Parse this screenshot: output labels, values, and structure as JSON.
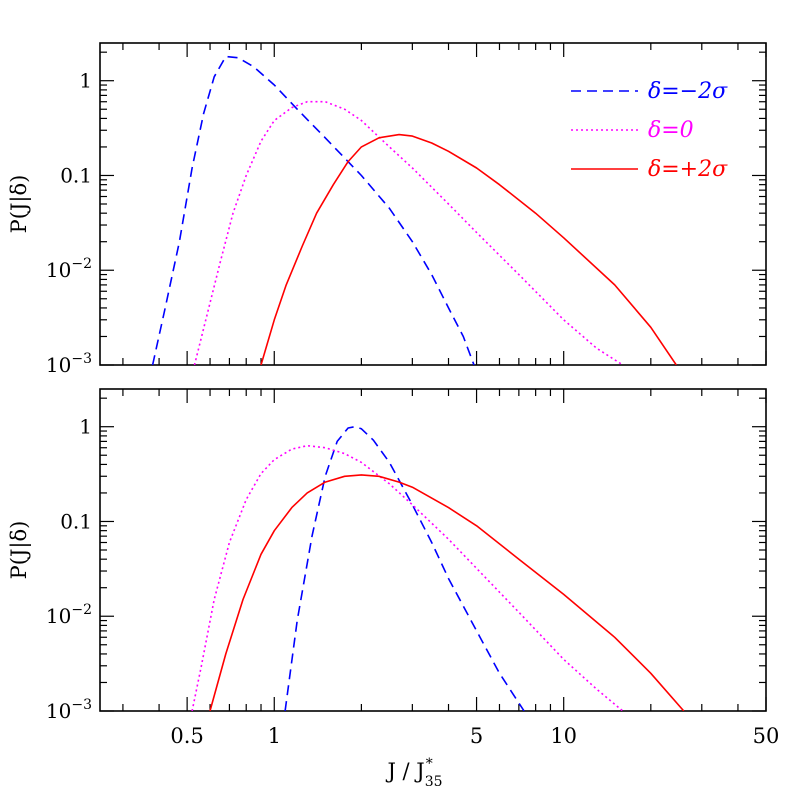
{
  "chart_data": [
    {
      "type": "line",
      "panel": "top",
      "x_scale": "log",
      "y_scale": "log",
      "xlim": [
        0.25,
        50
      ],
      "ylim": [
        0.001,
        2.5
      ],
      "ylabel": "P(J|δ)",
      "y_ticks": [
        {
          "value": 1,
          "label": "1"
        },
        {
          "value": 0.1,
          "label": "0.1"
        },
        {
          "value": 0.01,
          "label": "10",
          "sup": "−2"
        },
        {
          "value": 0.001,
          "label": "10",
          "sup": "−3"
        }
      ],
      "legend": {
        "position": "top-right"
      },
      "series": [
        {
          "name": "δ=−2σ",
          "color": "#0000ff",
          "style": "dashed",
          "x": [
            0.38,
            0.42,
            0.47,
            0.52,
            0.57,
            0.62,
            0.68,
            0.75,
            0.85,
            1.0,
            1.2,
            1.5,
            2.0,
            2.5,
            3.0,
            3.5,
            4.0,
            4.5,
            4.9
          ],
          "y": [
            0.001,
            0.004,
            0.02,
            0.12,
            0.45,
            1.1,
            1.8,
            1.75,
            1.4,
            0.9,
            0.5,
            0.25,
            0.1,
            0.045,
            0.02,
            0.009,
            0.004,
            0.002,
            0.001
          ]
        },
        {
          "name": "δ=0",
          "color": "#ff00ff",
          "style": "dotted",
          "x": [
            0.53,
            0.58,
            0.65,
            0.72,
            0.8,
            0.9,
            1.0,
            1.15,
            1.3,
            1.5,
            1.75,
            2.0,
            2.5,
            3.0,
            4.0,
            5.0,
            7.0,
            10.0,
            13.0,
            16.0
          ],
          "y": [
            0.001,
            0.003,
            0.012,
            0.04,
            0.1,
            0.23,
            0.38,
            0.52,
            0.6,
            0.6,
            0.5,
            0.38,
            0.2,
            0.12,
            0.05,
            0.025,
            0.009,
            0.003,
            0.0015,
            0.001
          ]
        },
        {
          "name": "δ=+2σ",
          "color": "#ff0000",
          "style": "solid",
          "x": [
            0.9,
            1.0,
            1.1,
            1.25,
            1.4,
            1.6,
            1.8,
            2.0,
            2.3,
            2.7,
            3.0,
            3.5,
            4.0,
            5.0,
            6.0,
            8.0,
            10.0,
            15.0,
            20.0,
            24.5
          ],
          "y": [
            0.001,
            0.003,
            0.007,
            0.018,
            0.04,
            0.08,
            0.14,
            0.2,
            0.25,
            0.27,
            0.26,
            0.22,
            0.18,
            0.12,
            0.08,
            0.04,
            0.022,
            0.007,
            0.0025,
            0.001
          ]
        }
      ]
    },
    {
      "type": "line",
      "panel": "bottom",
      "x_scale": "log",
      "y_scale": "log",
      "xlim": [
        0.25,
        50
      ],
      "ylim": [
        0.001,
        2.5
      ],
      "xlabel": "J  /  J",
      "xlabel_sup": "*",
      "xlabel_sub": "35",
      "ylabel": "P(J|δ)",
      "x_ticks": [
        {
          "value": 0.5,
          "label": "0.5"
        },
        {
          "value": 1,
          "label": "1"
        },
        {
          "value": 5,
          "label": "5"
        },
        {
          "value": 10,
          "label": "10"
        },
        {
          "value": 50,
          "label": "50"
        }
      ],
      "y_ticks": [
        {
          "value": 1,
          "label": "1"
        },
        {
          "value": 0.1,
          "label": "0.1"
        },
        {
          "value": 0.01,
          "label": "10",
          "sup": "−2"
        },
        {
          "value": 0.001,
          "label": "10",
          "sup": "−3"
        }
      ],
      "series": [
        {
          "name": "δ=−2σ",
          "color": "#0000ff",
          "style": "dashed",
          "x": [
            1.09,
            1.2,
            1.35,
            1.5,
            1.65,
            1.8,
            1.9,
            2.0,
            2.2,
            2.5,
            3.0,
            3.5,
            4.0,
            5.0,
            6.0,
            7.3
          ],
          "y": [
            0.001,
            0.009,
            0.07,
            0.3,
            0.7,
            0.97,
            1.0,
            0.95,
            0.72,
            0.42,
            0.15,
            0.06,
            0.025,
            0.007,
            0.0025,
            0.001
          ]
        },
        {
          "name": "δ=0",
          "color": "#ff00ff",
          "style": "dotted",
          "x": [
            0.52,
            0.56,
            0.62,
            0.7,
            0.8,
            0.9,
            1.0,
            1.15,
            1.3,
            1.5,
            1.75,
            2.0,
            2.5,
            3.0,
            4.0,
            5.0,
            7.0,
            10.0,
            13.0,
            16.0
          ],
          "y": [
            0.001,
            0.003,
            0.015,
            0.06,
            0.17,
            0.32,
            0.45,
            0.58,
            0.63,
            0.6,
            0.52,
            0.42,
            0.25,
            0.15,
            0.065,
            0.032,
            0.011,
            0.0035,
            0.0017,
            0.001
          ]
        },
        {
          "name": "δ=+2σ",
          "color": "#ff0000",
          "style": "solid",
          "x": [
            0.6,
            0.68,
            0.78,
            0.9,
            1.0,
            1.15,
            1.3,
            1.5,
            1.75,
            2.0,
            2.3,
            2.7,
            3.0,
            4.0,
            5.0,
            7.0,
            10.0,
            15.0,
            20.0,
            26.0
          ],
          "y": [
            0.001,
            0.004,
            0.015,
            0.045,
            0.08,
            0.14,
            0.2,
            0.26,
            0.3,
            0.31,
            0.3,
            0.26,
            0.23,
            0.14,
            0.09,
            0.04,
            0.017,
            0.006,
            0.0025,
            0.001
          ]
        }
      ]
    }
  ]
}
